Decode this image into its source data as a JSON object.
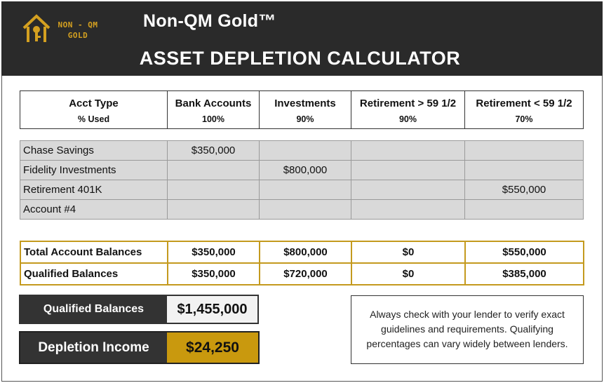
{
  "header": {
    "logo_line1": "NON - QM",
    "logo_line2": "GOLD",
    "title": "Non-QM Gold™",
    "subtitle": "ASSET DEPLETION CALCULATOR"
  },
  "columns": [
    {
      "label": "Acct Type",
      "pct": "% Used"
    },
    {
      "label": "Bank Accounts",
      "pct": "100%"
    },
    {
      "label": "Investments",
      "pct": "90%"
    },
    {
      "label": "Retirement > 59 1/2",
      "pct": "90%"
    },
    {
      "label": "Retirement  < 59 1/2",
      "pct": "70%"
    }
  ],
  "accounts": [
    {
      "name": "Chase Savings",
      "values": [
        "$350,000",
        "",
        "",
        ""
      ]
    },
    {
      "name": "Fidelity Investments",
      "values": [
        "",
        "$800,000",
        "",
        ""
      ]
    },
    {
      "name": "Retirement 401K",
      "values": [
        "",
        "",
        "",
        "$550,000"
      ]
    },
    {
      "name": "Account #4",
      "values": [
        "",
        "",
        "",
        ""
      ]
    }
  ],
  "totals": [
    {
      "name": "Total Account Balances",
      "values": [
        "$350,000",
        "$800,000",
        "$0",
        "$550,000"
      ]
    },
    {
      "name": "Qualified Balances",
      "values": [
        "$350,000",
        "$720,000",
        "$0",
        "$385,000"
      ]
    }
  ],
  "summary": {
    "qualified_label": "Qualified Balances",
    "qualified_value": "$1,455,000",
    "income_label": "Depletion Income",
    "income_value": "$24,250"
  },
  "note": "Always check with your lender to verify exact guidelines and requirements. Qualifying percentages can vary widely between lenders.",
  "colors": {
    "gold": "#c9990e",
    "dark": "#2a2a2a",
    "input_gray": "#d9d9d9"
  }
}
